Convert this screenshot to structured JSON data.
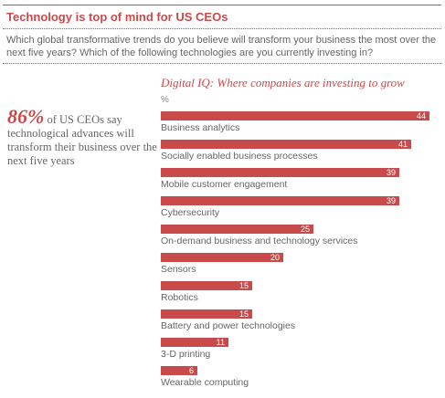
{
  "header": {
    "title": "Technology is top of mind for US CEOs",
    "question": "Which global transformative trends do you believe will transform your business the most over the next five years? Which of the following technologies are you currently investing in?"
  },
  "callout": {
    "percent": "86%",
    "text": "of US CEOs say technological advances will transform their business over the next five years"
  },
  "colors": {
    "accent": "#c94a4a",
    "text": "#666666"
  },
  "chart_data": {
    "type": "bar",
    "orientation": "horizontal",
    "title": "Digital IQ: Where companies are investing to grow",
    "unit": "%",
    "categories": [
      "Business analytics",
      "Socially enabled business processes",
      "Mobile customer engagement",
      "Cybersecurity",
      "On-demand business and technology services",
      "Sensors",
      "Robotics",
      "Battery and power technologies",
      "3-D printing",
      "Wearable computing"
    ],
    "values": [
      44,
      41,
      39,
      39,
      25,
      20,
      15,
      15,
      11,
      6
    ],
    "xlim": [
      0,
      44
    ],
    "grid": false,
    "legend": "none"
  }
}
